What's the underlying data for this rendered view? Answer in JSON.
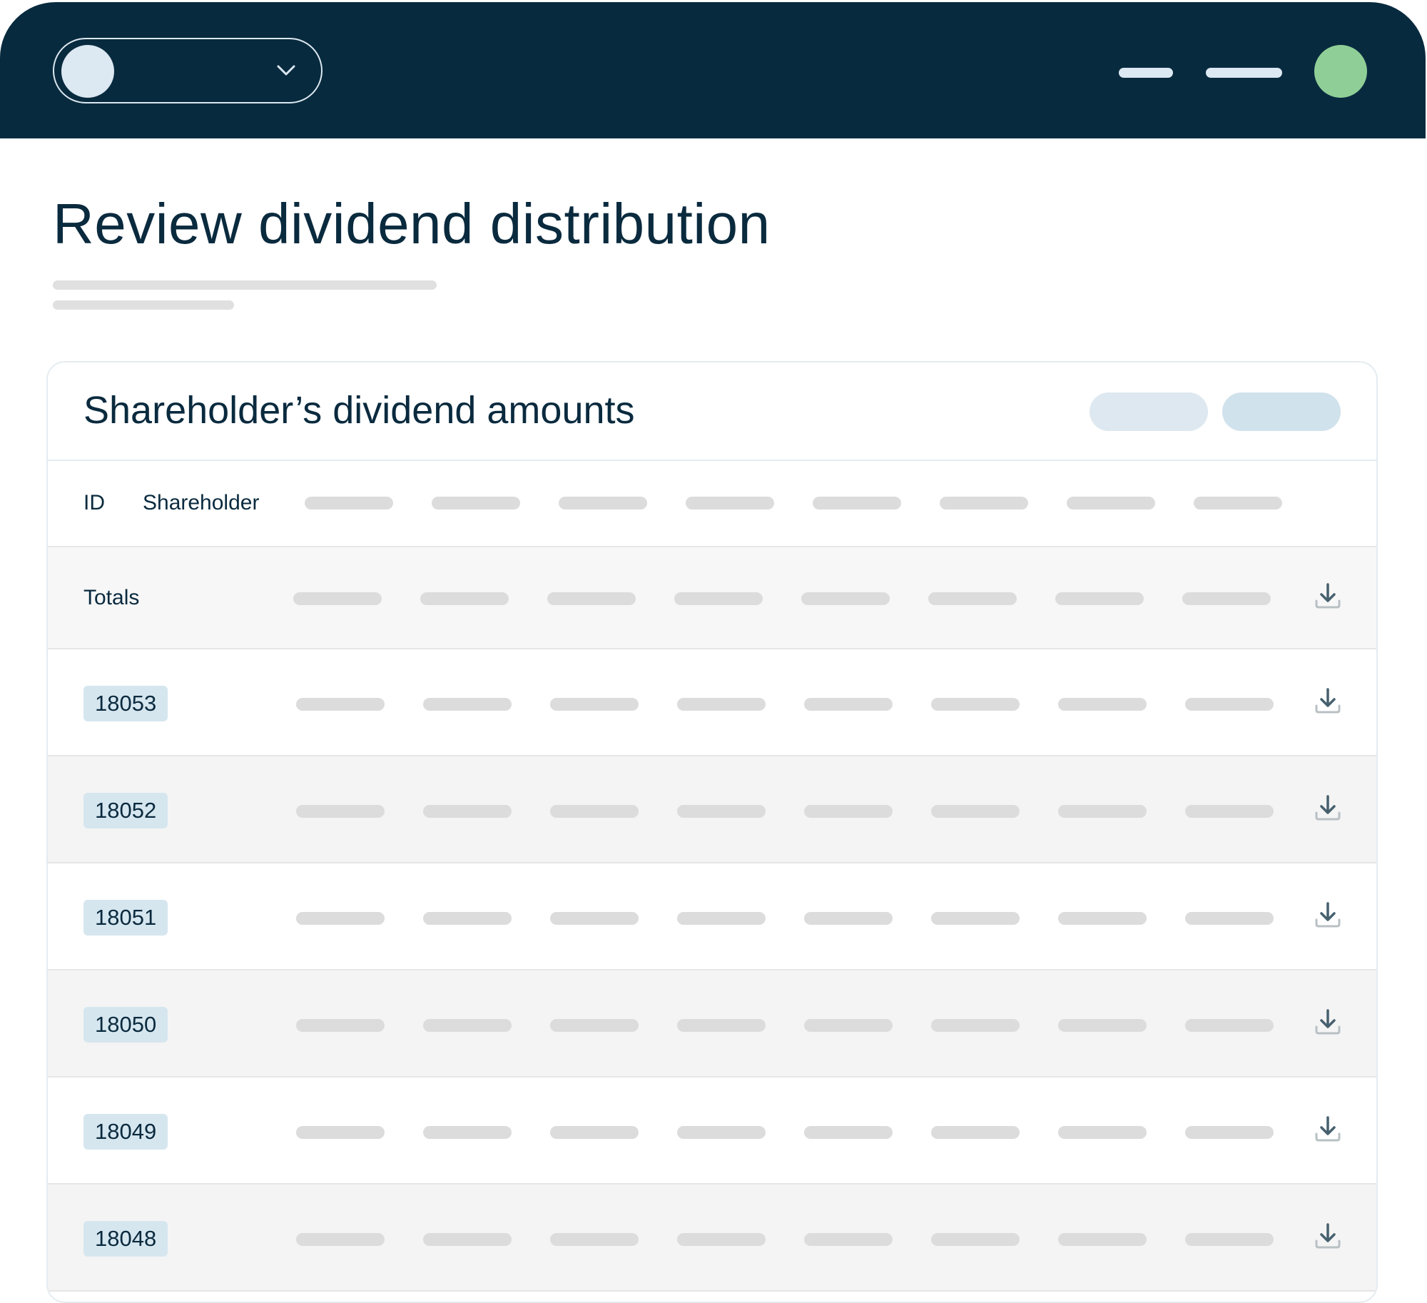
{
  "header": {
    "colors": {
      "bar": "#082a3e",
      "user_avatar": "#8fcf97"
    }
  },
  "page": {
    "title": "Review dividend distribution"
  },
  "card": {
    "title": "Shareholder’s dividend amounts",
    "columns": {
      "id": "ID",
      "shareholder": "Shareholder"
    },
    "totals_label": "Totals",
    "rows": [
      {
        "id": "18053"
      },
      {
        "id": "18052"
      },
      {
        "id": "18051"
      },
      {
        "id": "18050"
      },
      {
        "id": "18049"
      },
      {
        "id": "18048"
      }
    ]
  },
  "icons": {
    "row_action": "download-icon",
    "switcher": "chevron-down-icon"
  }
}
